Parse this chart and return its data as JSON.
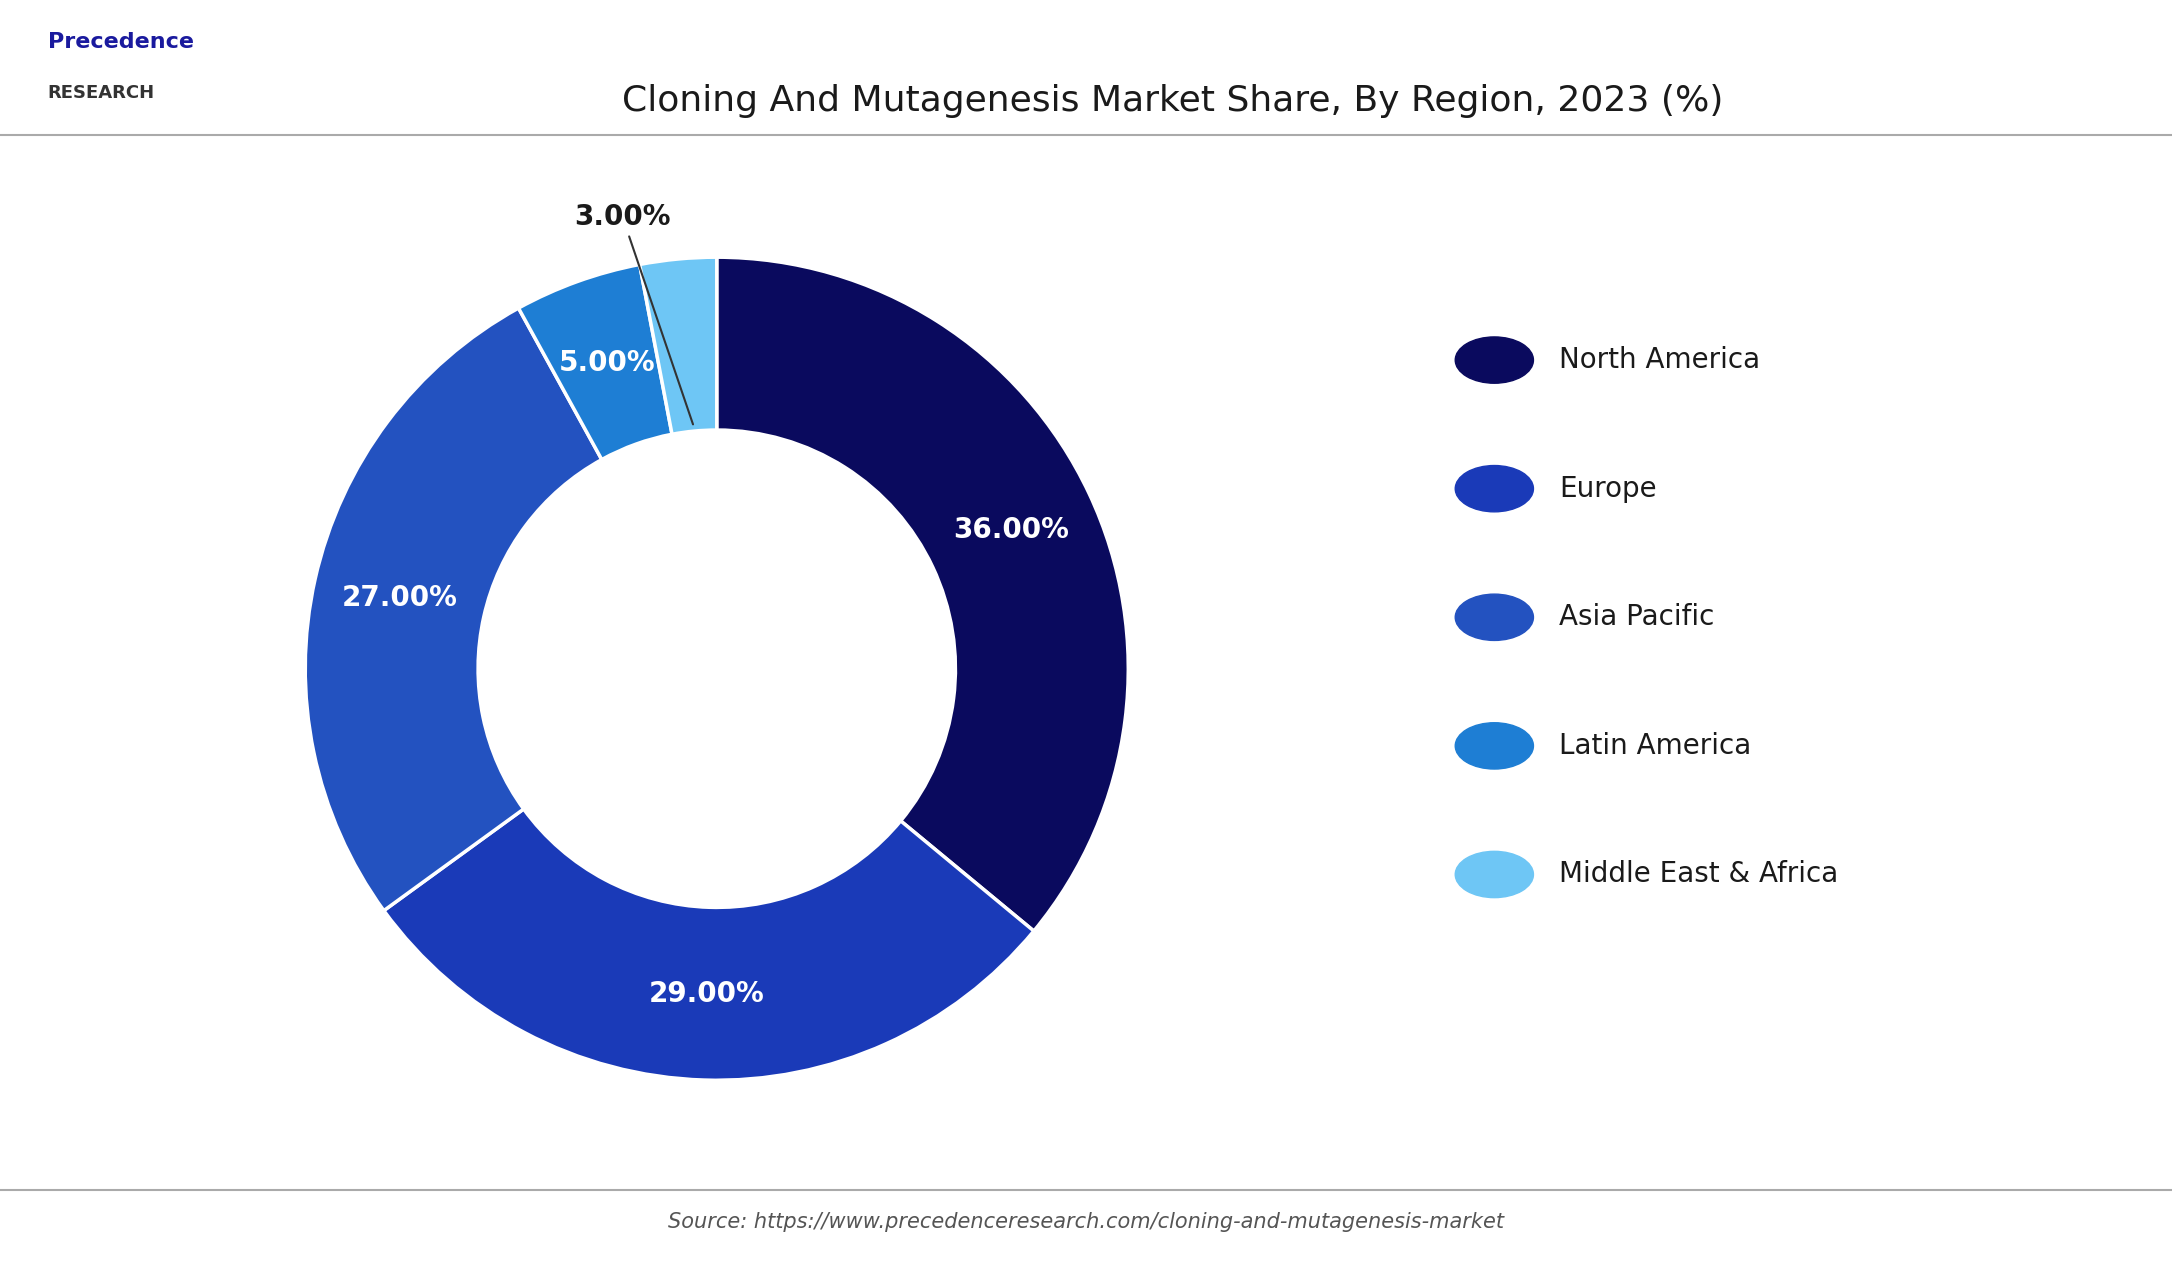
{
  "title": "Cloning And Mutagenesis Market Share, By Region, 2023 (%)",
  "segments": [
    {
      "label": "North America",
      "value": 36.0,
      "color": "#0a0a5e"
    },
    {
      "label": "Europe",
      "value": 29.0,
      "color": "#1a3ab8"
    },
    {
      "label": "Asia Pacific",
      "value": 27.0,
      "color": "#2352c0"
    },
    {
      "label": "Latin America",
      "value": 5.0,
      "color": "#1e7ed4"
    },
    {
      "label": "Middle East & Africa",
      "value": 3.0,
      "color": "#6ec6f5"
    }
  ],
  "bg_color": "#ffffff",
  "text_color_white": "#ffffff",
  "text_color_dark": "#1a1a1a",
  "source_text": "Source: https://www.precedenceresearch.com/cloning-and-mutagenesis-market",
  "title_fontsize": 26,
  "label_fontsize": 20,
  "legend_fontsize": 20,
  "source_fontsize": 15,
  "startangle": 90,
  "donut_width": 0.42
}
